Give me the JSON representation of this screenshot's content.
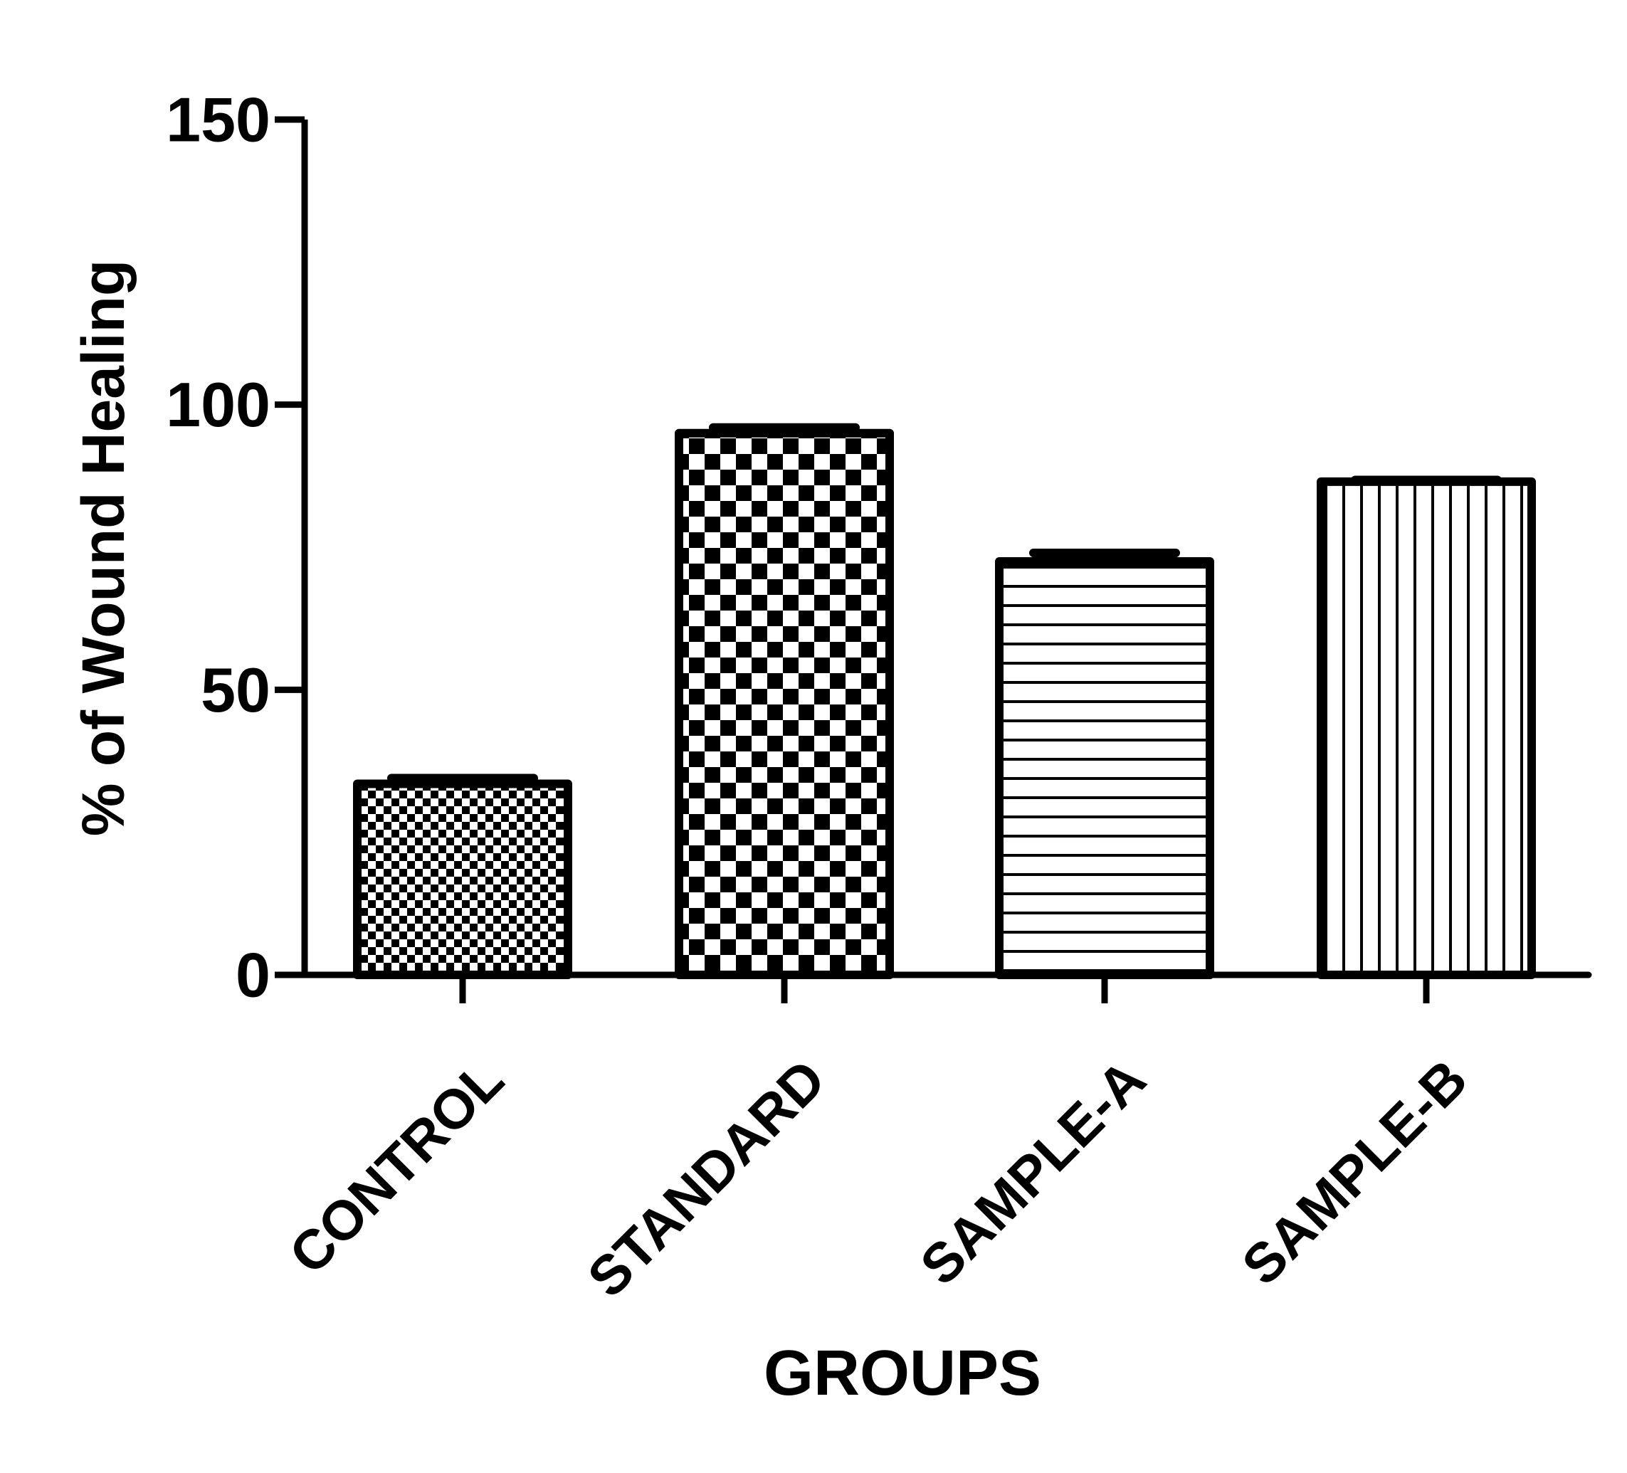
{
  "chart_data": {
    "type": "bar",
    "title": "",
    "xlabel": "GROUPS",
    "ylabel": "% of Wound Healing",
    "categories": [
      "CONTROL",
      "STANDARD",
      "SAMPLE-A",
      "SAMPLE-B"
    ],
    "values": [
      33.5,
      95.0,
      72.5,
      86.5
    ],
    "errors": [
      1.0,
      1.0,
      1.5,
      0.3
    ],
    "patterns": [
      "small-checker",
      "large-checker",
      "horizontal-lines",
      "vertical-lines"
    ],
    "ylim": [
      0,
      150
    ],
    "yticks": [
      0,
      50,
      100,
      150
    ],
    "ytick_labels": [
      "0",
      "50",
      "100",
      "150"
    ],
    "grid": false,
    "legend": "none",
    "colors": {
      "ink": "#000000",
      "background": "#ffffff"
    }
  }
}
